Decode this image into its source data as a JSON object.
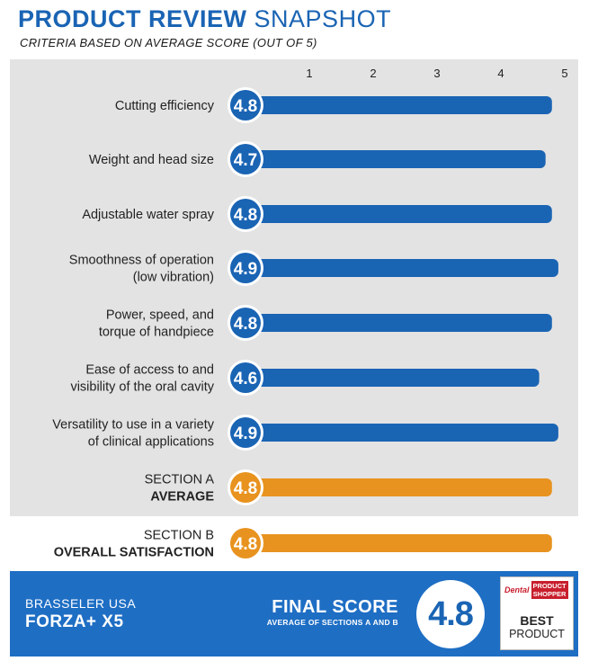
{
  "header": {
    "title_bold": "PRODUCT REVIEW",
    "title_light": "SNAPSHOT",
    "subtitle": "CRITERIA BASED ON AVERAGE SCORE (OUT OF 5)"
  },
  "colors": {
    "blue": "#1a64b4",
    "orange": "#e8931f",
    "panel": "#e3e3e3",
    "footer": "#1e6ec4",
    "red": "#c81e2d"
  },
  "chart_data": {
    "type": "bar",
    "orientation": "horizontal",
    "xlim": [
      0,
      5
    ],
    "ticks": [
      "1",
      "2",
      "3",
      "4",
      "5"
    ],
    "grid": false,
    "rows": [
      {
        "lines": [
          "Cutting efficiency"
        ],
        "value": 4.8,
        "label": "4.8",
        "color": "blue"
      },
      {
        "lines": [
          "Weight and head size"
        ],
        "value": 4.7,
        "label": "4.7",
        "color": "blue"
      },
      {
        "lines": [
          "Adjustable water spray"
        ],
        "value": 4.8,
        "label": "4.8",
        "color": "blue"
      },
      {
        "lines": [
          "Smoothness of operation",
          "(low vibration)"
        ],
        "value": 4.9,
        "label": "4.9",
        "color": "blue"
      },
      {
        "lines": [
          "Power, speed, and",
          "torque of handpiece"
        ],
        "value": 4.8,
        "label": "4.8",
        "color": "blue"
      },
      {
        "lines": [
          "Ease of access to and",
          "visibility of the oral cavity"
        ],
        "value": 4.6,
        "label": "4.6",
        "color": "blue"
      },
      {
        "lines": [
          "Versatility to use in a variety",
          "of clinical applications"
        ],
        "value": 4.9,
        "label": "4.9",
        "color": "blue"
      },
      {
        "lines": [
          "SECTION A",
          "AVERAGE"
        ],
        "bold_second": true,
        "value": 4.8,
        "label": "4.8",
        "color": "orange"
      },
      {
        "lines": [
          "SECTION B",
          "OVERALL SATISFACTION"
        ],
        "bold_second": true,
        "value": 4.8,
        "label": "4.8",
        "color": "orange"
      }
    ]
  },
  "footer": {
    "company": "BRASSELER USA",
    "product": "FORZA+ X5",
    "final_label": "FINAL SCORE",
    "final_sub": "AVERAGE OF SECTIONS A AND B",
    "final_value": "4.8"
  },
  "logo": {
    "dental": "Dental",
    "pps_line1": "PRODUCT",
    "pps_line2": "SHOPPER",
    "best": "BEST",
    "product": "PRODUCT"
  }
}
